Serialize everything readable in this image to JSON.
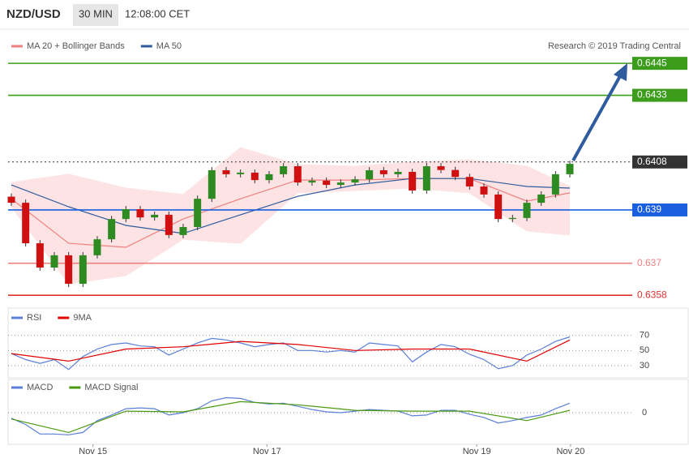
{
  "header": {
    "symbol": "NZD/USD",
    "interval": "30 MIN",
    "time": "12:08:00 CET"
  },
  "chart_data": [
    {
      "type": "candlestick",
      "credit": "Research © 2019 Trading Central",
      "up_color": "#2e8b22",
      "down_color": "#d01010",
      "xlim": [
        0,
        39
      ],
      "ylim": [
        0.63538,
        0.64572
      ],
      "open": [
        0.6395,
        0.63927,
        0.63775,
        0.63684,
        0.6373,
        0.63623,
        0.6373,
        0.6379,
        0.63866,
        0.63903,
        0.63872,
        0.63882,
        0.63806,
        0.63836,
        0.63942,
        0.64049,
        0.64034,
        0.6404,
        0.64012,
        0.64034,
        0.64064,
        0.64003,
        0.6401,
        0.63994,
        0.64003,
        0.64015,
        0.64049,
        0.64034,
        0.64043,
        0.63973,
        0.64064,
        0.6405,
        0.64024,
        0.63988,
        0.63958,
        0.63866,
        0.6387,
        0.63927,
        0.63958,
        0.64034
      ],
      "high": [
        0.63962,
        0.63939,
        0.63787,
        0.63742,
        0.63742,
        0.63742,
        0.63802,
        0.63878,
        0.63915,
        0.63915,
        0.63894,
        0.63894,
        0.63848,
        0.63954,
        0.64061,
        0.64061,
        0.64052,
        0.64052,
        0.64046,
        0.64076,
        0.64076,
        0.64022,
        0.64022,
        0.64015,
        0.64027,
        0.64061,
        0.64061,
        0.64055,
        0.64055,
        0.64076,
        0.64076,
        0.64062,
        0.64036,
        0.64,
        0.6397,
        0.63882,
        0.63939,
        0.6397,
        0.64046,
        0.64085
      ],
      "low": [
        0.63915,
        0.63763,
        0.63672,
        0.63672,
        0.63611,
        0.63611,
        0.63718,
        0.63778,
        0.63854,
        0.6386,
        0.6386,
        0.63794,
        0.63794,
        0.63824,
        0.6393,
        0.64022,
        0.64022,
        0.64,
        0.64,
        0.64022,
        0.63991,
        0.63991,
        0.63982,
        0.63982,
        0.63991,
        0.64003,
        0.64022,
        0.64022,
        0.63961,
        0.63961,
        0.64038,
        0.64012,
        0.63976,
        0.63946,
        0.63854,
        0.63854,
        0.63858,
        0.63915,
        0.63946,
        0.64022
      ],
      "close": [
        0.63927,
        0.63775,
        0.63684,
        0.6373,
        0.63623,
        0.6373,
        0.6379,
        0.63866,
        0.63903,
        0.63872,
        0.63882,
        0.63806,
        0.63836,
        0.63942,
        0.64049,
        0.64034,
        0.6404,
        0.64012,
        0.64034,
        0.64064,
        0.64003,
        0.6401,
        0.63994,
        0.64003,
        0.64015,
        0.64049,
        0.64034,
        0.64043,
        0.63973,
        0.64064,
        0.6405,
        0.64024,
        0.63988,
        0.63958,
        0.63866,
        0.6387,
        0.63927,
        0.63958,
        0.64034,
        0.64073
      ],
      "overlays": [
        {
          "name": "MA 20 + Bollinger Bands",
          "color": "#f08080",
          "band_color": "#fde3e3",
          "x": [
            0,
            4,
            8,
            12,
            16,
            20,
            24,
            28,
            32,
            36,
            39
          ],
          "values": [
            0.63942,
            0.63775,
            0.6376,
            0.63866,
            0.63942,
            0.64012,
            0.64012,
            0.64018,
            0.64018,
            0.63933,
            0.63964
          ],
          "upper": [
            0.64003,
            0.64034,
            0.63982,
            0.63958,
            0.64134,
            0.6407,
            0.64064,
            0.64079,
            0.64088,
            0.64064,
            0.63988
          ],
          "lower": [
            0.63912,
            0.63623,
            0.63654,
            0.6379,
            0.63775,
            0.63964,
            0.63973,
            0.63982,
            0.63964,
            0.63821,
            0.63806
          ]
        },
        {
          "name": "MA 50",
          "color": "#2e5c9e",
          "x": [
            0,
            4,
            8,
            12,
            16,
            20,
            24,
            28,
            32,
            36,
            39
          ],
          "values": [
            0.63994,
            0.63912,
            0.63842,
            0.63812,
            0.63882,
            0.63951,
            0.63994,
            0.64018,
            0.64018,
            0.63988,
            0.63982
          ]
        }
      ],
      "levels": [
        {
          "value": 0.6445,
          "color": "#3c9c1c",
          "style": "solid",
          "boxed": true
        },
        {
          "value": 0.6433,
          "color": "#3c9c1c",
          "style": "solid",
          "boxed": true
        },
        {
          "value": 0.6408,
          "color": "#333333",
          "style": "dotted",
          "boxed": true
        },
        {
          "value": 0.639,
          "color": "#1a5fe0",
          "style": "solid",
          "boxed": true
        },
        {
          "value": 0.637,
          "color": "#f08080",
          "style": "solid",
          "boxed": false
        },
        {
          "value": 0.6358,
          "color": "#e03030",
          "style": "solid",
          "boxed": false
        }
      ]
    },
    {
      "type": "line",
      "xlim": [
        0,
        39
      ],
      "ylim": [
        15,
        90
      ],
      "yticks": [
        70,
        50,
        30
      ],
      "series": [
        {
          "name": "RSI",
          "color": "#5b7fd6",
          "values": [
            46,
            38,
            33,
            38,
            25,
            42,
            52,
            58,
            60,
            56,
            55,
            44,
            52,
            60,
            66,
            64,
            60,
            55,
            58,
            60,
            50,
            50,
            48,
            50,
            48,
            60,
            58,
            56,
            35,
            48,
            58,
            55,
            45,
            38,
            26,
            30,
            44,
            52,
            62,
            68
          ]
        },
        {
          "name": "9MA",
          "color": "#e00000",
          "x": [
            0,
            4,
            8,
            12,
            16,
            20,
            24,
            28,
            32,
            36,
            39
          ],
          "values": [
            46,
            36,
            52,
            55,
            62,
            58,
            50,
            52,
            52,
            36,
            64
          ]
        }
      ]
    },
    {
      "type": "line",
      "xlim": [
        0,
        39
      ],
      "ylim": [
        -0.0004,
        0.0004
      ],
      "yticks": [
        0
      ],
      "xticks": [
        {
          "value": 5.7,
          "label": "Nov 15"
        },
        {
          "value": 17.85,
          "label": "Nov 17"
        },
        {
          "value": 32.5,
          "label": "Nov 19"
        },
        {
          "value": 39.05,
          "label": "Nov 20"
        }
      ],
      "series": [
        {
          "name": "MACD",
          "color": "#5b7fd6",
          "values": [
            -7e-05,
            -0.00015,
            -0.00027,
            -0.00027,
            -0.00028,
            -0.00025,
            -0.0001,
            -3e-05,
            5e-05,
            6e-05,
            5e-05,
            -3e-05,
            0,
            5e-05,
            0.00015,
            0.00019,
            0.00018,
            0.00013,
            0.00011,
            0.00012,
            8e-05,
            4e-05,
            1e-05,
            0,
            2e-05,
            4e-05,
            3e-05,
            2e-05,
            -4e-05,
            -3e-05,
            3e-05,
            3e-05,
            -2e-05,
            -6e-05,
            -0.00013,
            -0.0001,
            -6e-05,
            -3e-05,
            5e-05,
            0.00012
          ]
        },
        {
          "name": "MACD Signal",
          "color": "#4a9a10",
          "x": [
            0,
            4,
            8,
            12,
            16,
            20,
            24,
            28,
            32,
            36,
            39
          ],
          "values": [
            -8e-05,
            -0.00025,
            2e-05,
            1e-05,
            0.00014,
            0.0001,
            3e-05,
            2e-05,
            2e-05,
            -0.0001,
            3e-05
          ]
        }
      ]
    }
  ]
}
